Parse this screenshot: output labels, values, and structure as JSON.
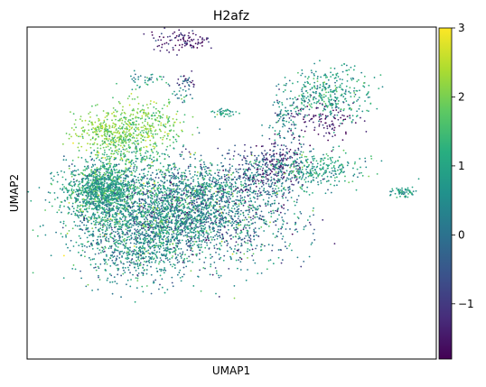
{
  "chart_data": {
    "type": "scatter",
    "title": "H2afz",
    "xlabel": "UMAP1",
    "ylabel": "UMAP2",
    "colorbar": {
      "colormap": "viridis",
      "range": [
        -1.8,
        3.0
      ],
      "ticks": [
        3,
        2,
        1,
        0,
        -1
      ],
      "tick_labels": [
        "3",
        "2",
        "1",
        "0",
        "−1"
      ]
    },
    "x_ticks_shown": false,
    "y_ticks_shown": false,
    "grid": false,
    "clusters": [
      {
        "x": 18,
        "y": 51,
        "sx": 4,
        "sy": 4,
        "n": 1100,
        "value": 0.9,
        "spread": 0.6
      },
      {
        "x": 30,
        "y": 45,
        "sx": 10,
        "sy": 7,
        "n": 1300,
        "value": 0.6,
        "spread": 0.7
      },
      {
        "x": 28,
        "y": 35,
        "sx": 8,
        "sy": 6,
        "n": 900,
        "value": 0.5,
        "spread": 0.7
      },
      {
        "x": 39,
        "y": 48,
        "sx": 8,
        "sy": 6,
        "n": 800,
        "value": 0.3,
        "spread": 0.9
      },
      {
        "x": 50,
        "y": 42,
        "sx": 9,
        "sy": 7,
        "n": 700,
        "value": 0.2,
        "spread": 0.9
      },
      {
        "x": 57,
        "y": 55,
        "sx": 5,
        "sy": 4,
        "n": 350,
        "value": -0.3,
        "spread": 0.9
      },
      {
        "x": 62,
        "y": 60,
        "sx": 3,
        "sy": 3,
        "n": 120,
        "value": -1.2,
        "spread": 0.6
      },
      {
        "x": 72,
        "y": 72,
        "sx": 4,
        "sy": 3,
        "n": 120,
        "value": -1.5,
        "spread": 0.5
      },
      {
        "x": 70,
        "y": 57,
        "sx": 6,
        "sy": 3,
        "n": 300,
        "value": 0.9,
        "spread": 0.5
      },
      {
        "x": 63,
        "y": 72,
        "sx": 2,
        "sy": 4,
        "n": 90,
        "value": 0.3,
        "spread": 0.6
      },
      {
        "x": 74,
        "y": 80,
        "sx": 5,
        "sy": 4,
        "n": 350,
        "value": 0.9,
        "spread": 0.5
      },
      {
        "x": 92,
        "y": 50,
        "sx": 1.5,
        "sy": 0.8,
        "n": 60,
        "value": 0.8,
        "spread": 0.4
      },
      {
        "x": 19,
        "y": 68,
        "sx": 4,
        "sy": 3,
        "n": 240,
        "value": 2.1,
        "spread": 0.3
      },
      {
        "x": 28,
        "y": 70,
        "sx": 5,
        "sy": 4,
        "n": 360,
        "value": 1.9,
        "spread": 0.4
      },
      {
        "x": 25,
        "y": 62,
        "sx": 4,
        "sy": 3,
        "n": 150,
        "value": 1.5,
        "spread": 0.5
      },
      {
        "x": 38,
        "y": 96,
        "sx": 4,
        "sy": 1.5,
        "n": 100,
        "value": -1.5,
        "spread": 0.5
      },
      {
        "x": 29,
        "y": 84,
        "sx": 2.5,
        "sy": 1.2,
        "n": 40,
        "value": 0.6,
        "spread": 0.6
      },
      {
        "x": 39,
        "y": 84,
        "sx": 1.5,
        "sy": 1,
        "n": 30,
        "value": -0.5,
        "spread": 0.6
      },
      {
        "x": 38,
        "y": 79,
        "sx": 1.5,
        "sy": 1,
        "n": 20,
        "value": 0.6,
        "spread": 0.6
      },
      {
        "x": 48,
        "y": 74,
        "sx": 1.5,
        "sy": 0.8,
        "n": 40,
        "value": 0.9,
        "spread": 0.4
      },
      {
        "x": 46,
        "y": 52,
        "sx": 3,
        "sy": 1,
        "n": 40,
        "value": 0.9,
        "spread": 0.5
      }
    ]
  }
}
